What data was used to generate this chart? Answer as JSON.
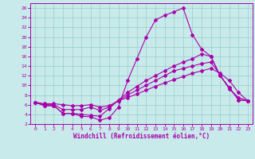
{
  "xlabel": "Windchill (Refroidissement éolien,°C)",
  "bg_color": "#c8eaea",
  "line_color": "#aa00aa",
  "grid_color": "#99cccc",
  "xlim": [
    -0.5,
    23.5
  ],
  "ylim": [
    2,
    27
  ],
  "xticks": [
    0,
    1,
    2,
    3,
    4,
    5,
    6,
    7,
    8,
    9,
    10,
    11,
    12,
    13,
    14,
    15,
    16,
    17,
    18,
    19,
    20,
    21,
    22,
    23
  ],
  "yticks": [
    2,
    4,
    6,
    8,
    10,
    12,
    14,
    16,
    18,
    20,
    22,
    24,
    26
  ],
  "line1_x": [
    0,
    1,
    2,
    3,
    4,
    5,
    6,
    7,
    8,
    9,
    10,
    11,
    12,
    13,
    14,
    15,
    16,
    17,
    18,
    19,
    20,
    21,
    22,
    23
  ],
  "line1_y": [
    6.5,
    5.8,
    5.8,
    4.2,
    4.2,
    3.6,
    3.5,
    2.8,
    3.3,
    5.5,
    11.0,
    15.5,
    20.0,
    23.5,
    24.5,
    25.2,
    26.0,
    20.5,
    17.5,
    16.0,
    12.0,
    9.5,
    7.0,
    6.8
  ],
  "line2_x": [
    0,
    1,
    2,
    3,
    4,
    5,
    6,
    7,
    8,
    9,
    10,
    11,
    12,
    13,
    14,
    15,
    16,
    17,
    18,
    19,
    20,
    21,
    22,
    23
  ],
  "line2_y": [
    6.5,
    5.8,
    5.8,
    4.2,
    4.2,
    4.0,
    3.8,
    3.6,
    5.2,
    7.0,
    8.5,
    9.8,
    11.0,
    12.0,
    13.0,
    14.0,
    14.8,
    15.5,
    16.5,
    16.0,
    12.0,
    9.5,
    7.0,
    6.8
  ],
  "line3_x": [
    0,
    1,
    2,
    3,
    4,
    5,
    6,
    7,
    8,
    9,
    10,
    11,
    12,
    13,
    14,
    15,
    16,
    17,
    18,
    19,
    20,
    21,
    22,
    23
  ],
  "line3_y": [
    6.5,
    6.0,
    6.0,
    5.0,
    5.0,
    5.0,
    5.5,
    4.8,
    5.5,
    6.8,
    8.0,
    9.0,
    10.0,
    11.0,
    12.0,
    13.0,
    13.5,
    14.0,
    14.5,
    14.8,
    12.2,
    9.2,
    7.5,
    6.8
  ],
  "line4_x": [
    0,
    1,
    2,
    3,
    4,
    5,
    6,
    7,
    8,
    9,
    10,
    11,
    12,
    13,
    14,
    15,
    16,
    17,
    18,
    19,
    20,
    21,
    22,
    23
  ],
  "line4_y": [
    6.5,
    6.2,
    6.2,
    6.0,
    5.8,
    5.8,
    6.0,
    5.5,
    5.8,
    6.8,
    7.5,
    8.2,
    9.0,
    9.8,
    10.5,
    11.2,
    11.8,
    12.5,
    13.0,
    13.5,
    12.5,
    11.0,
    8.5,
    6.8
  ]
}
